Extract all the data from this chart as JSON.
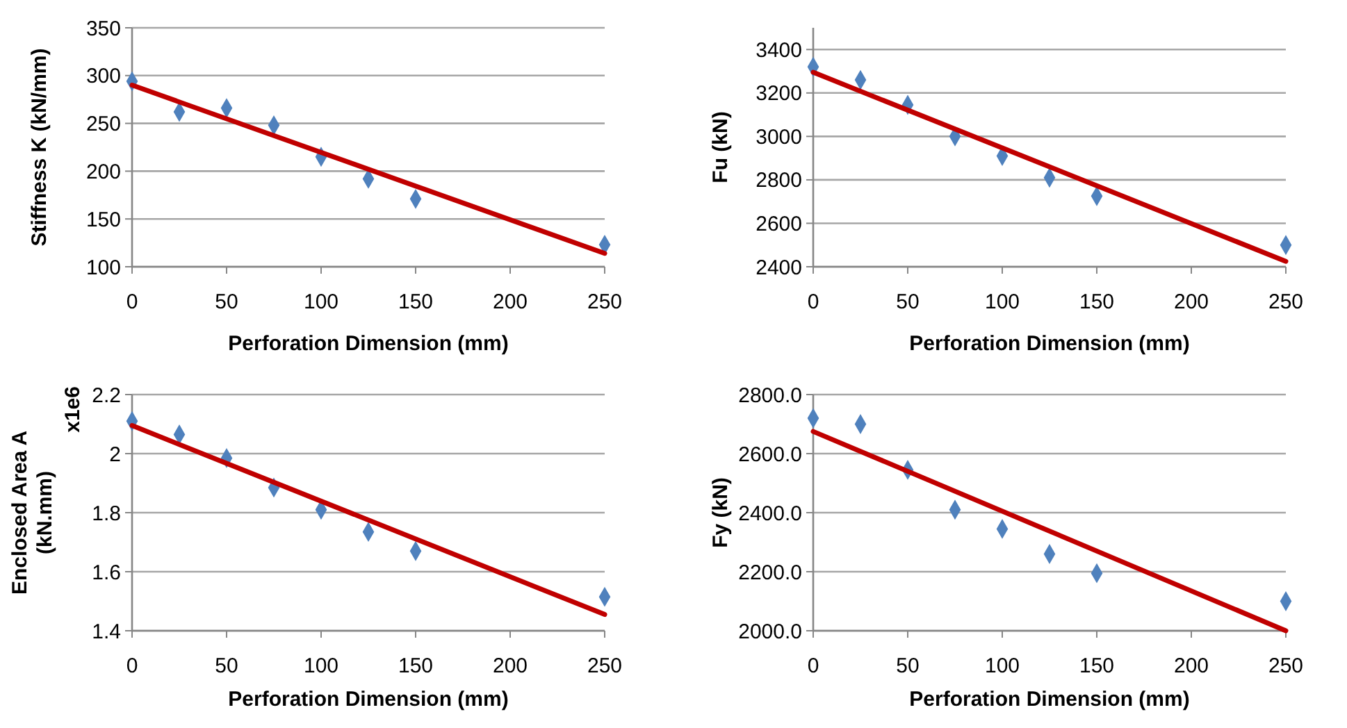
{
  "chart_data": [
    {
      "type": "scatter",
      "xlabel": "Perforation Dimension (mm)",
      "ylabel": "Stiffness K (kN/mm)",
      "xlim": [
        0,
        250
      ],
      "xticks": [
        0,
        50,
        100,
        150,
        200,
        250
      ],
      "ylim": [
        100,
        350
      ],
      "yticks": [
        100,
        150,
        200,
        250,
        300,
        350
      ],
      "grid": "y",
      "series": [
        {
          "marker": "diamond",
          "color": "#4f81bd",
          "x": [
            0,
            25,
            50,
            75,
            100,
            125,
            150,
            250
          ],
          "values": [
            294,
            262,
            266,
            248,
            215,
            192,
            171,
            123
          ]
        },
        {
          "type": "line",
          "marker": "none",
          "line_style": "solid",
          "color": "#c00000",
          "x": [
            0,
            250
          ],
          "values": [
            290,
            114
          ]
        }
      ]
    },
    {
      "type": "scatter",
      "xlabel": "Perforation Dimension (mm)",
      "ylabel": "Fu (kN)",
      "xlim": [
        0,
        250
      ],
      "xticks": [
        0,
        50,
        100,
        150,
        200,
        250
      ],
      "ylim": [
        2400,
        3500
      ],
      "yticks": [
        2400,
        2600,
        2800,
        3000,
        3200,
        3400
      ],
      "grid": "y",
      "series": [
        {
          "marker": "diamond",
          "color": "#4f81bd",
          "x": [
            0,
            25,
            50,
            75,
            100,
            125,
            150,
            250
          ],
          "values": [
            3320,
            3260,
            3145,
            3000,
            2910,
            2810,
            2725,
            2500
          ]
        },
        {
          "type": "line",
          "marker": "none",
          "line_style": "solid",
          "color": "#c00000",
          "x": [
            0,
            250
          ],
          "values": [
            3295,
            2425
          ]
        }
      ]
    },
    {
      "type": "scatter",
      "xlabel": "Perforation Dimension (mm)",
      "ylabel": "Enclosed Area A (kN.mm)",
      "annotations": [
        "x1e6"
      ],
      "xlim": [
        0,
        250
      ],
      "xticks": [
        0,
        50,
        100,
        150,
        200,
        250
      ],
      "ylim": [
        1.4,
        2.2
      ],
      "yticks": [
        1.4,
        1.6,
        1.8,
        2,
        2.2
      ],
      "grid": "y",
      "series": [
        {
          "marker": "diamond",
          "color": "#4f81bd",
          "x": [
            0,
            25,
            50,
            75,
            100,
            125,
            150,
            250
          ],
          "values": [
            2.11,
            2.065,
            1.985,
            1.885,
            1.81,
            1.735,
            1.67,
            1.515
          ]
        },
        {
          "type": "line",
          "marker": "none",
          "line_style": "solid",
          "color": "#c00000",
          "x": [
            0,
            250
          ],
          "values": [
            2.095,
            1.455
          ]
        }
      ]
    },
    {
      "type": "scatter",
      "xlabel": "Perforation Dimension (mm)",
      "ylabel": "Fy (kN)",
      "xlim": [
        0,
        250
      ],
      "xticks": [
        0,
        50,
        100,
        150,
        200,
        250
      ],
      "ylim": [
        2000,
        2800
      ],
      "yticks": [
        {
          "value": 2000,
          "label": "2000.0"
        },
        {
          "value": 2200,
          "label": "2200.0"
        },
        {
          "value": 2400,
          "label": "2400.0"
        },
        {
          "value": 2600,
          "label": "2600.0"
        },
        {
          "value": 2800,
          "label": "2800.0"
        }
      ],
      "grid": "y",
      "series": [
        {
          "marker": "diamond",
          "color": "#4f81bd",
          "x": [
            0,
            25,
            50,
            75,
            100,
            125,
            150,
            250
          ],
          "values": [
            2720,
            2700,
            2545,
            2410,
            2345,
            2260,
            2195,
            2100
          ]
        },
        {
          "type": "line",
          "marker": "none",
          "line_style": "solid",
          "color": "#c00000",
          "x": [
            0,
            250
          ],
          "values": [
            2675,
            2000
          ]
        }
      ]
    }
  ]
}
